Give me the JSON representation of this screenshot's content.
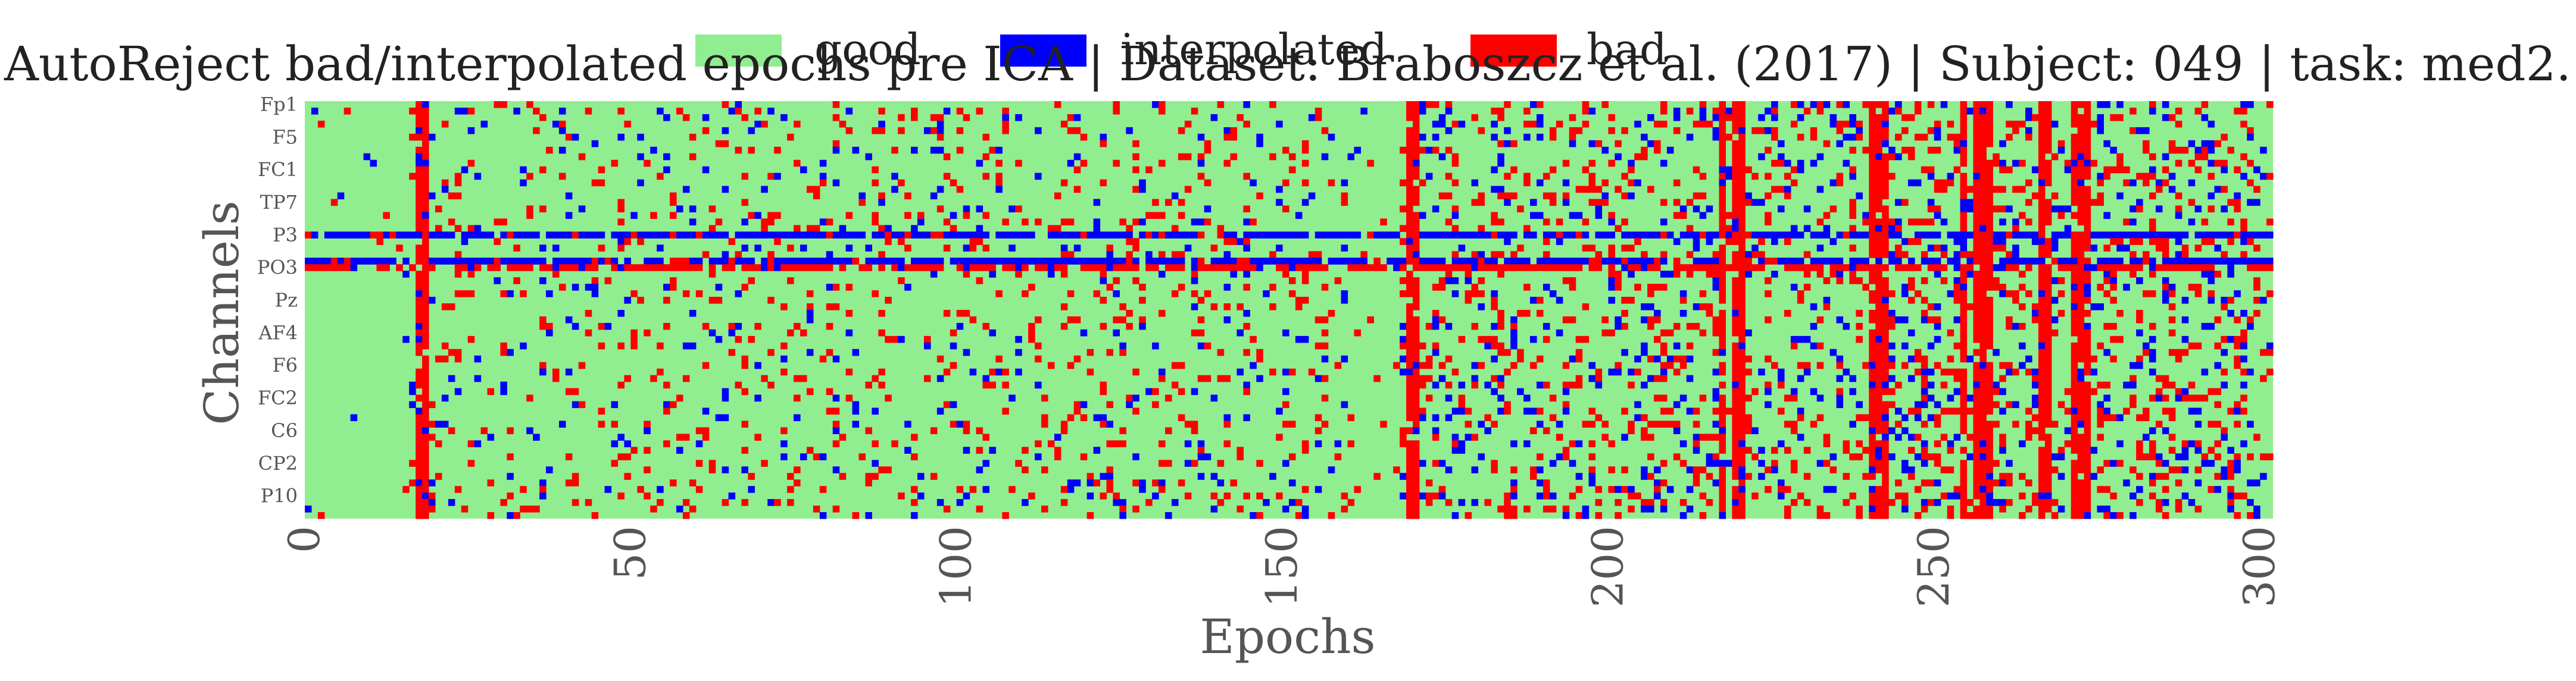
{
  "chart_data": {
    "type": "heatmap",
    "title": "AutoReject bad/interpolated epochs pre ICA | Dataset: Braboszcz et al. (2017) | Subject: 049 | task: med2.",
    "xlabel": "Epochs",
    "ylabel": "Channels",
    "n_epochs": 302,
    "n_channels": 64,
    "xlim": [
      0,
      302
    ],
    "x_ticks": [
      0,
      50,
      100,
      150,
      200,
      250,
      300
    ],
    "y_tick_labels": [
      "Fp1",
      "F5",
      "FC1",
      "TP7",
      "P3",
      "PO3",
      "Pz",
      "AF4",
      "F6",
      "FC2",
      "C6",
      "CP2",
      "P10"
    ],
    "y_tick_index_step": 5,
    "legend": [
      {
        "name": "good",
        "color": "#90ee90"
      },
      {
        "name": "interpolated",
        "color": "#0000ff"
      },
      {
        "name": "bad",
        "color": "#ff0000"
      }
    ],
    "legend_position": "top-center",
    "grid": false,
    "colors": {
      "good": "#90ee90",
      "interpolated": "#0000ff",
      "bad": "#ff0000"
    },
    "bad_epochs": [
      17,
      18,
      169,
      170,
      217,
      219,
      220,
      240,
      241,
      242,
      254,
      256,
      257,
      258,
      266,
      267,
      271,
      272,
      273
    ],
    "interp_channel_rows": [
      20,
      24
    ],
    "bad_channel_rows": [
      25
    ]
  }
}
